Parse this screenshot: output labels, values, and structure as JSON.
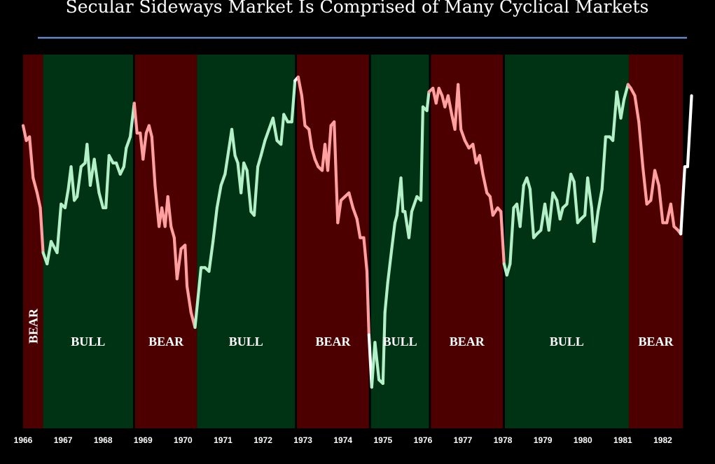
{
  "chart_data": {
    "type": "line",
    "title": "Secular Sideways Market Is Comprised of Many Cyclical Markets",
    "xlim": [
      1966.0,
      1982.85
    ],
    "ylim": [
      0,
      100
    ],
    "grid": false,
    "x_ticks": [
      "1966",
      "1967",
      "1968",
      "1969",
      "1970",
      "1971",
      "1972",
      "1973",
      "1974",
      "1975",
      "1976",
      "1977",
      "1978",
      "1979",
      "1980",
      "1981",
      "1982"
    ],
    "phases": [
      {
        "label": "BEAR",
        "type": "bear",
        "start": 1966.0,
        "end": 1966.5,
        "vertical": true
      },
      {
        "label": "BULL",
        "type": "bull",
        "start": 1966.5,
        "end": 1968.75
      },
      {
        "label": "BEAR",
        "type": "bear",
        "start": 1968.8,
        "end": 1970.35
      },
      {
        "label": "BULL",
        "type": "bull",
        "start": 1970.35,
        "end": 1972.8
      },
      {
        "label": "BEAR",
        "type": "bear",
        "start": 1972.85,
        "end": 1974.65
      },
      {
        "label": "BULL",
        "type": "bull",
        "start": 1974.7,
        "end": 1976.15
      },
      {
        "label": "BEAR",
        "type": "bear",
        "start": 1976.2,
        "end": 1978.0
      },
      {
        "label": "BULL",
        "type": "bull",
        "start": 1978.05,
        "end": 1981.15
      },
      {
        "label": "BEAR",
        "type": "bear",
        "start": 1981.15,
        "end": 1982.5
      }
    ],
    "series": [
      {
        "values": [
          [
            1966.0,
            81
          ],
          [
            1966.08,
            77
          ],
          [
            1966.16,
            78
          ],
          [
            1966.25,
            67
          ],
          [
            1966.35,
            63
          ],
          [
            1966.43,
            59
          ],
          [
            1966.5,
            47
          ],
          [
            1966.6,
            44
          ],
          [
            1966.7,
            50
          ],
          [
            1966.85,
            47
          ],
          [
            1966.95,
            60
          ],
          [
            1967.05,
            59
          ],
          [
            1967.13,
            64
          ],
          [
            1967.2,
            70
          ],
          [
            1967.28,
            61
          ],
          [
            1967.35,
            62
          ],
          [
            1967.45,
            70
          ],
          [
            1967.55,
            71
          ],
          [
            1967.6,
            76
          ],
          [
            1967.68,
            65
          ],
          [
            1967.78,
            72
          ],
          [
            1967.9,
            63
          ],
          [
            1968.0,
            59
          ],
          [
            1968.07,
            59
          ],
          [
            1968.15,
            73
          ],
          [
            1968.25,
            71
          ],
          [
            1968.33,
            71
          ],
          [
            1968.43,
            68
          ],
          [
            1968.52,
            70
          ],
          [
            1968.58,
            75
          ],
          [
            1968.68,
            78
          ],
          [
            1968.78,
            87
          ],
          [
            1968.85,
            79
          ],
          [
            1968.93,
            79
          ],
          [
            1969.0,
            72
          ],
          [
            1969.08,
            79
          ],
          [
            1969.15,
            81
          ],
          [
            1969.22,
            78
          ],
          [
            1969.3,
            65
          ],
          [
            1969.4,
            54
          ],
          [
            1969.47,
            59
          ],
          [
            1969.55,
            54
          ],
          [
            1969.62,
            62
          ],
          [
            1969.7,
            54
          ],
          [
            1969.78,
            51
          ],
          [
            1969.85,
            40
          ],
          [
            1969.95,
            48
          ],
          [
            1970.05,
            49
          ],
          [
            1970.1,
            38
          ],
          [
            1970.2,
            31
          ],
          [
            1970.3,
            27
          ],
          [
            1970.45,
            43
          ],
          [
            1970.55,
            43
          ],
          [
            1970.65,
            42
          ],
          [
            1970.75,
            50
          ],
          [
            1970.85,
            59
          ],
          [
            1970.95,
            65
          ],
          [
            1971.05,
            68
          ],
          [
            1971.15,
            75
          ],
          [
            1971.22,
            80
          ],
          [
            1971.3,
            73
          ],
          [
            1971.37,
            71
          ],
          [
            1971.45,
            63
          ],
          [
            1971.52,
            71
          ],
          [
            1971.6,
            69
          ],
          [
            1971.7,
            58
          ],
          [
            1971.78,
            57
          ],
          [
            1971.87,
            70
          ],
          [
            1971.95,
            73
          ],
          [
            1972.05,
            77
          ],
          [
            1972.15,
            80
          ],
          [
            1972.25,
            83
          ],
          [
            1972.35,
            77
          ],
          [
            1972.45,
            76
          ],
          [
            1972.52,
            84
          ],
          [
            1972.62,
            82
          ],
          [
            1972.72,
            82
          ],
          [
            1972.8,
            93
          ],
          [
            1972.88,
            94
          ],
          [
            1972.97,
            89
          ],
          [
            1973.05,
            81
          ],
          [
            1973.15,
            80
          ],
          [
            1973.22,
            75
          ],
          [
            1973.3,
            72
          ],
          [
            1973.38,
            70
          ],
          [
            1973.48,
            69
          ],
          [
            1973.55,
            76
          ],
          [
            1973.62,
            69
          ],
          [
            1973.7,
            81
          ],
          [
            1973.78,
            82
          ],
          [
            1973.87,
            55
          ],
          [
            1973.95,
            61
          ],
          [
            1974.05,
            62
          ],
          [
            1974.15,
            63
          ],
          [
            1974.25,
            59
          ],
          [
            1974.35,
            56
          ],
          [
            1974.43,
            51
          ],
          [
            1974.52,
            51
          ],
          [
            1974.6,
            42
          ],
          [
            1974.65,
            25
          ],
          [
            1974.72,
            11
          ],
          [
            1974.8,
            23
          ],
          [
            1974.9,
            13
          ],
          [
            1975.0,
            12
          ],
          [
            1975.05,
            31
          ],
          [
            1975.12,
            39
          ],
          [
            1975.22,
            48
          ],
          [
            1975.3,
            55
          ],
          [
            1975.35,
            57
          ],
          [
            1975.45,
            67
          ],
          [
            1975.5,
            58
          ],
          [
            1975.55,
            58
          ],
          [
            1975.65,
            51
          ],
          [
            1975.72,
            58
          ],
          [
            1975.85,
            62
          ],
          [
            1975.95,
            61
          ],
          [
            1976.0,
            86
          ],
          [
            1976.1,
            85
          ],
          [
            1976.15,
            90
          ],
          [
            1976.25,
            91
          ],
          [
            1976.33,
            87
          ],
          [
            1976.4,
            91
          ],
          [
            1976.48,
            89
          ],
          [
            1976.55,
            86
          ],
          [
            1976.63,
            89
          ],
          [
            1976.72,
            84
          ],
          [
            1976.8,
            80
          ],
          [
            1976.88,
            92
          ],
          [
            1976.95,
            80
          ],
          [
            1977.05,
            77
          ],
          [
            1977.15,
            75
          ],
          [
            1977.25,
            76
          ],
          [
            1977.33,
            71
          ],
          [
            1977.42,
            73
          ],
          [
            1977.5,
            68
          ],
          [
            1977.6,
            63
          ],
          [
            1977.68,
            62
          ],
          [
            1977.75,
            57
          ],
          [
            1977.87,
            59
          ],
          [
            1977.95,
            58
          ],
          [
            1978.03,
            44
          ],
          [
            1978.1,
            41
          ],
          [
            1978.18,
            44
          ],
          [
            1978.27,
            59
          ],
          [
            1978.35,
            60
          ],
          [
            1978.43,
            54
          ],
          [
            1978.52,
            65
          ],
          [
            1978.6,
            67
          ],
          [
            1978.68,
            64
          ],
          [
            1978.77,
            51
          ],
          [
            1978.85,
            52
          ],
          [
            1978.95,
            53
          ],
          [
            1979.05,
            60
          ],
          [
            1979.15,
            53
          ],
          [
            1979.25,
            63
          ],
          [
            1979.35,
            61
          ],
          [
            1979.43,
            56
          ],
          [
            1979.5,
            59
          ],
          [
            1979.6,
            60
          ],
          [
            1979.7,
            68
          ],
          [
            1979.78,
            66
          ],
          [
            1979.87,
            55
          ],
          [
            1979.95,
            56
          ],
          [
            1980.05,
            57
          ],
          [
            1980.12,
            67
          ],
          [
            1980.22,
            59
          ],
          [
            1980.28,
            50
          ],
          [
            1980.38,
            58
          ],
          [
            1980.48,
            64
          ],
          [
            1980.57,
            78
          ],
          [
            1980.67,
            78
          ],
          [
            1980.75,
            77
          ],
          [
            1980.85,
            90
          ],
          [
            1980.95,
            83
          ],
          [
            1981.03,
            88
          ],
          [
            1981.13,
            92
          ],
          [
            1981.2,
            91
          ],
          [
            1981.3,
            89
          ],
          [
            1981.4,
            82
          ],
          [
            1981.5,
            70
          ],
          [
            1981.6,
            60
          ],
          [
            1981.7,
            61
          ],
          [
            1981.8,
            69
          ],
          [
            1981.9,
            65
          ],
          [
            1982.0,
            55
          ],
          [
            1982.1,
            55
          ],
          [
            1982.2,
            60
          ],
          [
            1982.28,
            54
          ],
          [
            1982.38,
            53
          ],
          [
            1982.45,
            52
          ]
        ]
      },
      {
        "values": [
          [
            1982.45,
            52
          ],
          [
            1982.55,
            70
          ],
          [
            1982.62,
            70
          ],
          [
            1982.72,
            89
          ]
        ]
      }
    ]
  },
  "colors": {
    "background": "#000000",
    "bull_band": "#003314",
    "bear_band": "#4d0000",
    "bull_line": "#b3f0c8",
    "bear_line": "#ff9f9f",
    "current_line": "#ffffff",
    "title_rule": "#6b86c9"
  }
}
